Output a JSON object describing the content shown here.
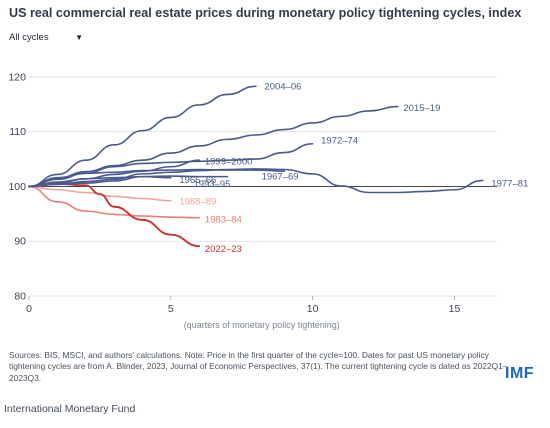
{
  "header": {
    "title": "US real commercial real estate prices during monetary policy tightening cycles, index"
  },
  "filter": {
    "selected": "All cycles"
  },
  "chart_data": {
    "type": "line",
    "xlabel": "(quarters of monetary policy tightening)",
    "ylabel": "",
    "xlim": [
      0,
      16.5
    ],
    "ylim": [
      80,
      122
    ],
    "x_ticks": [
      0,
      5,
      10,
      15
    ],
    "y_ticks": [
      80,
      90,
      100,
      110,
      120
    ],
    "baseline": 100,
    "colors": {
      "navy": "#4a5a8c",
      "light_red": "#f0a39a",
      "salmon": "#e7807a",
      "red": "#c8332b",
      "baseline": "#2b3546"
    },
    "series": [
      {
        "name": "2004–06",
        "color": "#4a5a8c",
        "x": [
          0,
          1,
          2,
          3,
          4,
          5,
          6,
          7,
          8
        ],
        "y": [
          100,
          102.2,
          104.8,
          107.6,
          110.2,
          112.6,
          114.9,
          116.8,
          118.3
        ]
      },
      {
        "name": "2015–19",
        "color": "#4a5a8c",
        "x": [
          0,
          1,
          2,
          3,
          4,
          5,
          6,
          7,
          8,
          9,
          10,
          11,
          12,
          13
        ],
        "y": [
          100,
          101.5,
          102.7,
          103.8,
          104.8,
          106.1,
          107.4,
          108.6,
          109.4,
          110.4,
          111.6,
          112.8,
          113.8,
          114.6
        ]
      },
      {
        "name": "1972–74",
        "color": "#4a5a8c",
        "x": [
          0,
          1,
          2,
          3,
          4,
          5,
          6,
          7,
          8,
          9,
          10
        ],
        "y": [
          100,
          101.3,
          102.4,
          103.6,
          104.2,
          104.4,
          104.6,
          104.8,
          105.0,
          106.2,
          107.8
        ]
      },
      {
        "name": "1999–2000",
        "color": "#4a5a8c",
        "x": [
          0,
          1,
          2,
          3,
          4,
          5,
          6
        ],
        "y": [
          100,
          100.6,
          101.4,
          102.2,
          102.8,
          103.6,
          104.8
        ]
      },
      {
        "name": "1967–69",
        "color": "#4a5a8c",
        "x": [
          0,
          1,
          2,
          3,
          4,
          5,
          6,
          7,
          8,
          9
        ],
        "y": [
          100,
          101.6,
          102.4,
          102.6,
          102.9,
          103.0,
          103.1,
          103.0,
          103.0,
          102.8
        ]
      },
      {
        "name": "1965–66",
        "color": "#4a5a8c",
        "x": [
          0,
          1,
          2,
          3,
          4,
          5
        ],
        "y": [
          100,
          100.8,
          101.4,
          101.6,
          101.8,
          101.6
        ]
      },
      {
        "name": "1993–95",
        "color": "#4a5a8c",
        "x": [
          0,
          1,
          2,
          3,
          4,
          5,
          6,
          7
        ],
        "y": [
          100,
          100.4,
          100.6,
          101.0,
          101.8,
          101.9,
          101.8,
          101.8
        ]
      },
      {
        "name": "1977–81",
        "color": "#4a5a8c",
        "x": [
          0,
          1,
          2,
          3,
          4,
          5,
          6,
          7,
          8,
          9,
          10,
          11,
          12,
          13,
          14,
          15,
          16
        ],
        "y": [
          100,
          100.4,
          100.9,
          101.3,
          102.3,
          102.6,
          102.9,
          103.1,
          103.2,
          103.1,
          102.3,
          100.1,
          98.9,
          98.9,
          99.1,
          99.4,
          101.1
        ]
      },
      {
        "name": "1988–89",
        "color": "#f0a39a",
        "x": [
          0,
          1,
          2,
          3,
          4,
          5
        ],
        "y": [
          100,
          99.4,
          98.9,
          98.2,
          97.8,
          97.4
        ]
      },
      {
        "name": "1983–84",
        "color": "#e7807a",
        "x": [
          0,
          1,
          2,
          3,
          4,
          5,
          6
        ],
        "y": [
          100,
          97.2,
          95.5,
          94.9,
          94.6,
          94.4,
          94.3
        ]
      },
      {
        "name": "2022–23",
        "color": "#c8332b",
        "x": [
          0,
          1,
          2,
          2.5,
          3,
          4,
          5,
          6
        ],
        "y": [
          100,
          100.5,
          100.2,
          98.6,
          96.3,
          93.9,
          91.2,
          89.1
        ]
      }
    ],
    "labels": [
      {
        "text": "2004–06",
        "series": "2004–06",
        "at_x": 8.3,
        "at_y": 118.3
      },
      {
        "text": "2015–19",
        "series": "2015–19",
        "at_x": 13.2,
        "at_y": 114.4
      },
      {
        "text": "1972–74",
        "series": "1972–74",
        "at_x": 10.3,
        "at_y": 108.5
      },
      {
        "text": "1999–2000",
        "series": "1999–2000",
        "at_x": 6.2,
        "at_y": 104.6
      },
      {
        "text": "1967–69",
        "series": "1967–69",
        "at_x": 8.2,
        "at_y": 101.9
      },
      {
        "text": "1965–66",
        "series": "1965–66",
        "at_x": 5.3,
        "at_y": 101.3
      },
      {
        "text": "1993–95",
        "series": "1993–95",
        "at_x": 5.8,
        "at_y": 100.5
      },
      {
        "text": "1977–81",
        "series": "1977–81",
        "at_x": 16.3,
        "at_y": 100.6
      },
      {
        "text": "1988–89",
        "series": "1988–89",
        "at_x": 5.3,
        "at_y": 97.3
      },
      {
        "text": "1983–84",
        "series": "1983–84",
        "at_x": 6.2,
        "at_y": 94.0
      },
      {
        "text": "2022–23",
        "series": "2022–23",
        "at_x": 6.2,
        "at_y": 88.7
      }
    ]
  },
  "footer": {
    "source": "Sources: BIS, MSCI, and authors' calculations. Note: Price in the first quarter of the cycle=100. Dates for past US monetary policy tightening cycles are from A. Blinder, 2023, Journal of Economic Perspectives, 37(1). The current tightening cycle is dated as 2022Q1–2023Q3.",
    "logo": "IMF",
    "credit": "International Monetary Fund"
  }
}
